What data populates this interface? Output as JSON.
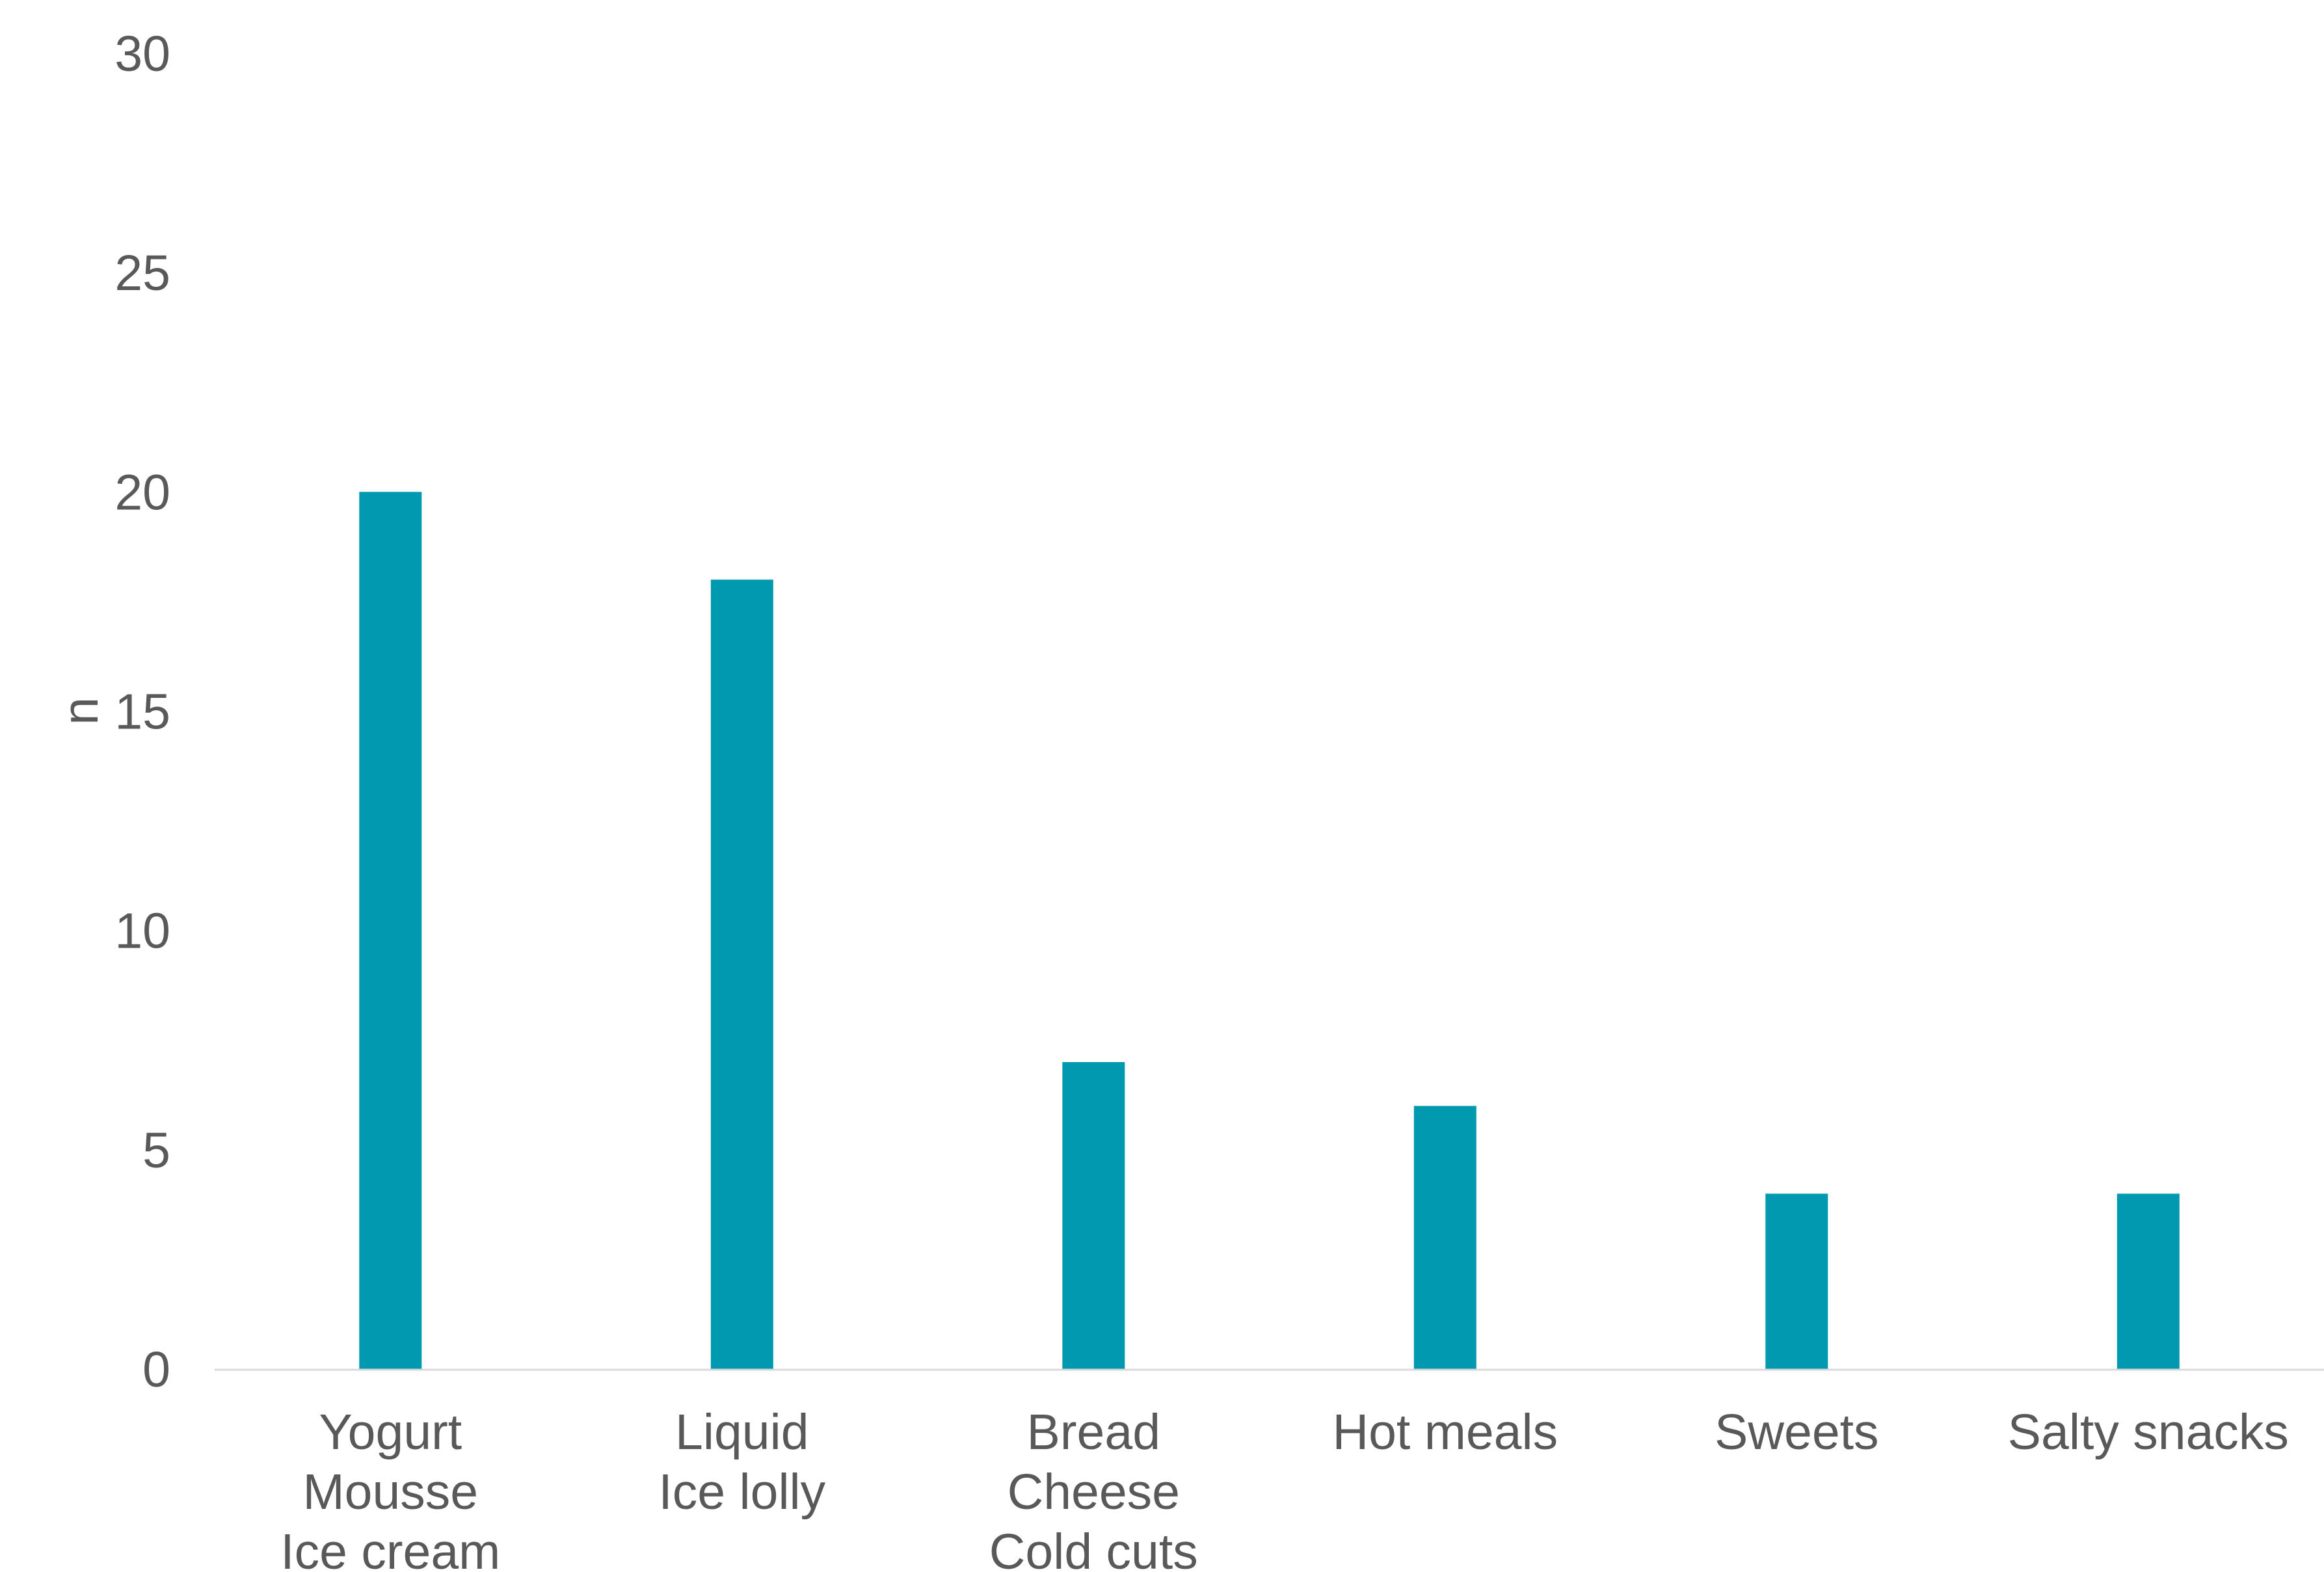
{
  "chart_data": {
    "type": "bar",
    "title": "",
    "xlabel": "",
    "ylabel": "n",
    "ylim": [
      0,
      30
    ],
    "yticks": [
      0,
      5,
      10,
      15,
      20,
      25,
      30
    ],
    "grid": false,
    "legend": "none",
    "bar_color": "#0099B0",
    "axis_color": "#D9D9D9",
    "text_color": "#595959",
    "categories": [
      [
        "Yogurt",
        "Mousse",
        "Ice cream"
      ],
      [
        "Liquid",
        "Ice lolly"
      ],
      [
        "Bread",
        "Cheese",
        "Cold cuts"
      ],
      [
        "Hot meals"
      ],
      [
        "Sweets"
      ],
      [
        "Salty snacks"
      ]
    ],
    "values": [
      20,
      18,
      7,
      6,
      4,
      4
    ]
  }
}
